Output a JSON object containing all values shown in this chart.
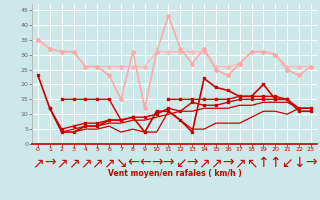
{
  "x": [
    0,
    1,
    2,
    3,
    4,
    5,
    6,
    7,
    8,
    9,
    10,
    11,
    12,
    13,
    14,
    15,
    16,
    17,
    18,
    19,
    20,
    21,
    22,
    23
  ],
  "bgcolor": "#cce8e8",
  "grid_color": "#ffffff",
  "xlabel": "Vent moyen/en rafales ( km/h )",
  "xlabel_color": "#cc0000",
  "tick_color": "#cc0000",
  "ylabel_color": "#666666",
  "xlim": [
    -0.5,
    23.5
  ],
  "ylim": [
    0,
    47
  ],
  "yticks": [
    0,
    5,
    10,
    15,
    20,
    25,
    30,
    35,
    40,
    45
  ],
  "xticks": [
    0,
    1,
    2,
    3,
    4,
    5,
    6,
    7,
    8,
    9,
    10,
    11,
    12,
    13,
    14,
    15,
    16,
    17,
    18,
    19,
    20,
    21,
    22,
    23
  ],
  "figsize": [
    3.2,
    2.0
  ],
  "dpi": 100,
  "series": [
    {
      "name": "rafales_light1",
      "vals": [
        35,
        32,
        31,
        31,
        26,
        26,
        26,
        26,
        26,
        26,
        31,
        31,
        31,
        31,
        31,
        26,
        26,
        27,
        31,
        31,
        30,
        26,
        26,
        26
      ],
      "color": "#ffb8b8",
      "lw": 1.0,
      "marker": "D",
      "ms": 2.0,
      "zorder": 2
    },
    {
      "name": "rafales_light2",
      "vals": [
        null,
        null,
        null,
        null,
        null,
        null,
        null,
        null,
        null,
        null,
        null,
        null,
        null,
        null,
        null,
        null,
        null,
        null,
        null,
        null,
        null,
        null,
        null,
        null
      ],
      "color": "#ff9999",
      "lw": 1.0,
      "marker": "D",
      "ms": 2.0,
      "zorder": 2
    },
    {
      "name": "rafales_max",
      "vals": [
        35,
        32,
        31,
        31,
        26,
        26,
        23,
        15,
        31,
        12,
        31,
        43,
        32,
        27,
        32,
        25,
        23,
        27,
        31,
        31,
        30,
        25,
        23,
        26
      ],
      "color": "#ffaaaa",
      "lw": 1.2,
      "marker": "D",
      "ms": 2.0,
      "zorder": 3
    },
    {
      "name": "vent_max_scatter",
      "vals": [
        23,
        12,
        4,
        4,
        6,
        6,
        8,
        8,
        9,
        4,
        11,
        11,
        8,
        4,
        22,
        19,
        18,
        16,
        16,
        20,
        15,
        15,
        11,
        11
      ],
      "color": "#cc0000",
      "lw": 1.2,
      "marker": "s",
      "ms": 2.0,
      "zorder": 5
    },
    {
      "name": "trend_upper",
      "vals": [
        null,
        null,
        15,
        15,
        15,
        15,
        15,
        8,
        null,
        null,
        null,
        15,
        15,
        15,
        15,
        15,
        15,
        16,
        16,
        16,
        16,
        15,
        null,
        null
      ],
      "color": "#cc0000",
      "lw": 1.0,
      "marker": "s",
      "ms": 1.5,
      "zorder": 4
    },
    {
      "name": "trend_mid",
      "vals": [
        null,
        12,
        5,
        6,
        7,
        7,
        8,
        8,
        9,
        9,
        10,
        12,
        11,
        14,
        13,
        13,
        14,
        15,
        15,
        15,
        15,
        15,
        12,
        12
      ],
      "color": "#cc0000",
      "lw": 1.0,
      "marker": "s",
      "ms": 1.5,
      "zorder": 4
    },
    {
      "name": "trend_low1",
      "vals": [
        null,
        null,
        null,
        4,
        5,
        5,
        6,
        4,
        5,
        4,
        4,
        11,
        8,
        5,
        5,
        7,
        7,
        7,
        9,
        11,
        11,
        10,
        12,
        12
      ],
      "color": "#cc0000",
      "lw": 0.9,
      "marker": null,
      "ms": 0,
      "zorder": 3
    },
    {
      "name": "trend_low2",
      "vals": [
        null,
        null,
        4,
        5,
        6,
        6,
        7,
        7,
        8,
        8,
        9,
        10,
        11,
        11,
        12,
        12,
        12,
        13,
        13,
        14,
        14,
        14,
        12,
        12
      ],
      "color": "#cc0000",
      "lw": 0.9,
      "marker": null,
      "ms": 0,
      "zorder": 3
    }
  ],
  "arrows": [
    "↗",
    "→",
    "↗",
    "↗",
    "↗",
    "↗",
    "↗",
    "↘",
    "←",
    "←",
    "→",
    "→",
    "↙",
    "→",
    "↗",
    "↗",
    "→",
    "↗",
    "↖",
    "↑",
    "↑",
    "↙",
    "↓",
    "→"
  ]
}
